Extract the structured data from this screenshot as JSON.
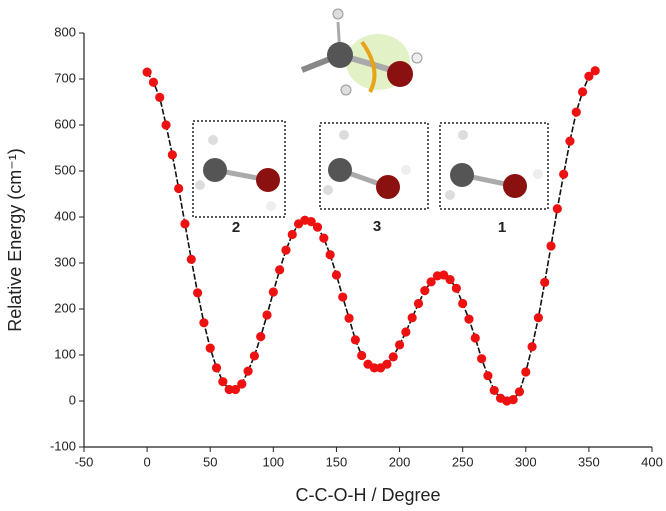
{
  "chart_data": {
    "type": "line-scatter",
    "x_label": "C-C-O-H / Degree",
    "y_label": "Relative Energy (cm⁻¹)",
    "xlim": [
      -50,
      400
    ],
    "xticks": [
      -50,
      0,
      50,
      100,
      150,
      200,
      250,
      300,
      350,
      400
    ],
    "ylim": [
      -100,
      800
    ],
    "yticks": [
      -100,
      0,
      100,
      200,
      300,
      400,
      500,
      600,
      700,
      800
    ],
    "annotations": [
      "2",
      "3",
      "1"
    ],
    "series": [
      {
        "color": "#ee1111",
        "x": [
          0,
          5,
          10,
          15,
          20,
          25,
          30,
          35,
          40,
          45,
          50,
          55,
          60,
          65,
          70,
          75,
          80,
          85,
          90,
          95,
          100,
          105,
          110,
          115,
          120,
          125,
          130,
          135,
          140,
          145,
          150,
          155,
          160,
          165,
          170,
          175,
          180,
          185,
          190,
          195,
          200,
          205,
          210,
          215,
          220,
          225,
          230,
          235,
          240,
          245,
          250,
          255,
          260,
          265,
          270,
          275,
          280,
          285,
          290,
          295,
          300,
          305,
          310,
          315,
          320,
          325,
          330,
          335,
          340,
          345,
          350,
          355
        ],
        "values": [
          715,
          693,
          660,
          600,
          535,
          462,
          385,
          308,
          235,
          170,
          115,
          72,
          42,
          25,
          25,
          37,
          65,
          98,
          140,
          187,
          237,
          285,
          328,
          362,
          385,
          393,
          390,
          378,
          354,
          318,
          274,
          226,
          180,
          133,
          99,
          80,
          72,
          72,
          80,
          96,
          122,
          150,
          181,
          212,
          240,
          259,
          272,
          274,
          264,
          245,
          212,
          178,
          137,
          92,
          55,
          23,
          6,
          0,
          3,
          20,
          63,
          118,
          181,
          258,
          337,
          418,
          493,
          565,
          628,
          672,
          706,
          718
        ]
      }
    ]
  }
}
